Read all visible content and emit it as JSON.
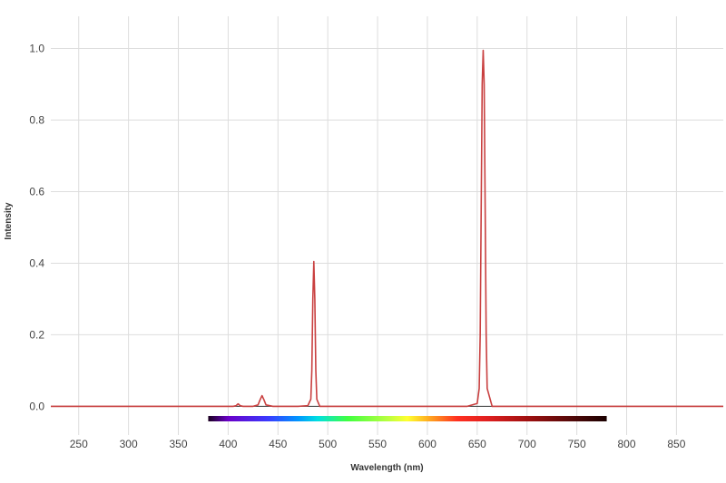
{
  "chart_data": {
    "type": "line",
    "title": "",
    "xlabel": "Wavelength (nm)",
    "ylabel": "Intensity",
    "xlim": [
      222,
      897
    ],
    "ylim": [
      -0.08,
      1.09
    ],
    "xticks": [
      250,
      300,
      350,
      400,
      450,
      500,
      550,
      600,
      650,
      700,
      750,
      800,
      850
    ],
    "yticks": [
      0.0,
      0.2,
      0.4,
      0.6,
      0.8,
      1.0
    ],
    "ytick_labels": [
      "0.0",
      "0.2",
      "0.4",
      "0.6",
      "0.8",
      "1.0"
    ],
    "grid": true,
    "legend": "none",
    "series": [
      {
        "color": "#c94040",
        "peaks": [
          {
            "wavelength": 410,
            "intensity": 0.007
          },
          {
            "wavelength": 434,
            "intensity": 0.03
          },
          {
            "wavelength": 486,
            "intensity": 0.405
          },
          {
            "wavelength": 656,
            "intensity": 0.995
          }
        ],
        "x": [
          222,
          300,
          380,
          405,
          408,
          410,
          412,
          415,
          425,
          430,
          432,
          434,
          436,
          438,
          445,
          470,
          480,
          483,
          484,
          485,
          486,
          487,
          488,
          489,
          492,
          510,
          600,
          640,
          650,
          652,
          653,
          654,
          655,
          656,
          657,
          658,
          659,
          660,
          665,
          700,
          800,
          897
        ],
        "y": [
          0.0,
          0.0,
          0.0,
          0.0,
          0.002,
          0.007,
          0.002,
          0.0,
          0.0,
          0.004,
          0.018,
          0.03,
          0.018,
          0.004,
          0.0,
          0.0,
          0.002,
          0.02,
          0.1,
          0.3,
          0.405,
          0.3,
          0.1,
          0.02,
          0.0,
          0.0,
          0.0,
          0.0,
          0.008,
          0.05,
          0.2,
          0.55,
          0.9,
          0.995,
          0.9,
          0.55,
          0.2,
          0.05,
          0.0,
          0.0,
          0.0,
          0.0
        ]
      }
    ],
    "spectrum_bar": {
      "range": [
        380,
        780
      ],
      "stops": [
        {
          "nm": 380,
          "color": "#1a001f"
        },
        {
          "nm": 400,
          "color": "#6a00c8"
        },
        {
          "nm": 440,
          "color": "#3a3aff"
        },
        {
          "nm": 470,
          "color": "#0096ff"
        },
        {
          "nm": 490,
          "color": "#00e0e0"
        },
        {
          "nm": 520,
          "color": "#40ff40"
        },
        {
          "nm": 560,
          "color": "#b8ff40"
        },
        {
          "nm": 580,
          "color": "#ffff30"
        },
        {
          "nm": 600,
          "color": "#ffb020"
        },
        {
          "nm": 630,
          "color": "#ff3020"
        },
        {
          "nm": 660,
          "color": "#e02020"
        },
        {
          "nm": 700,
          "color": "#a01010"
        },
        {
          "nm": 750,
          "color": "#4a0808"
        },
        {
          "nm": 780,
          "color": "#1a0000"
        }
      ]
    }
  }
}
